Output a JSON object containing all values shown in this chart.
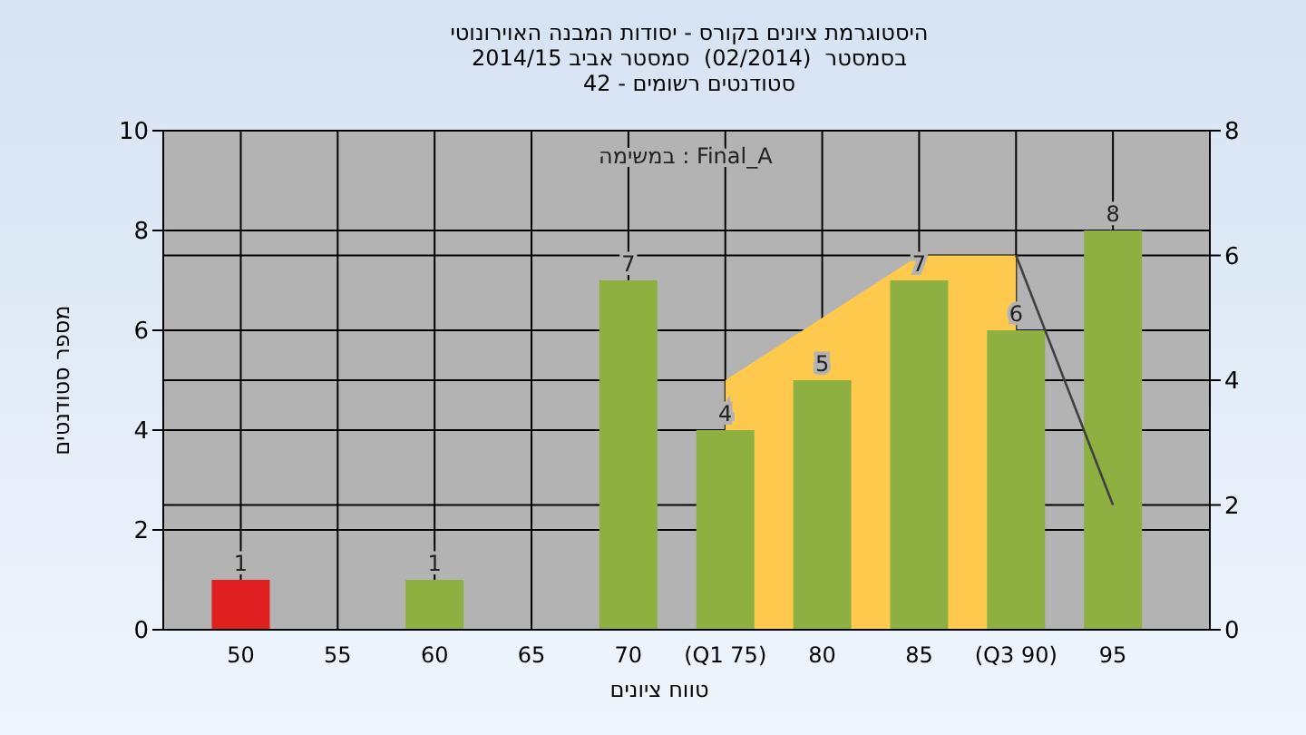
{
  "chart_data": {
    "type": "bar",
    "title": "היסטוגרמת ציונים בקורס - יסודות המבנה האוירונוטי",
    "subtitle": "בסמסטר  (02/2014)  סמסטר אביב 2014/15\nסטודנטים רשומים - 42",
    "xlabel": "טווח ציונים",
    "ylabel": "מספר סטודנטים",
    "annotations": [
      "במשימה : Final_A"
    ],
    "categories": [
      "50",
      "55",
      "60",
      "65",
      "70",
      "(Q1 75)",
      "80",
      "85",
      "(Q3 90)",
      "95"
    ],
    "series": [
      {
        "type": "area",
        "axis": "y2",
        "color": "#ffc94d",
        "values": [
          null,
          null,
          null,
          null,
          null,
          4,
          5,
          6,
          6,
          null
        ]
      },
      {
        "type": "line",
        "axis": "y2",
        "color": "#404040",
        "values": [
          null,
          null,
          null,
          null,
          null,
          null,
          null,
          null,
          6,
          2
        ]
      },
      {
        "value_labels": [
          "1",
          null,
          "1",
          null,
          "7",
          "4",
          "5",
          "7",
          "6",
          "8"
        ],
        "colors": [
          "#e02020",
          "#8db040",
          "#8db040",
          "#8db040",
          "#8db040",
          "#8db040",
          "#8db040",
          "#8db040",
          "#8db040",
          "#8db040"
        ],
        "values": [
          1,
          0,
          1,
          0,
          7,
          4,
          5,
          7,
          6,
          8
        ]
      }
    ],
    "grid": true,
    "ylim": [
      0,
      10
    ],
    "yticks": [
      0,
      2,
      4,
      6,
      8,
      10
    ],
    "y2lim": [
      0,
      8
    ],
    "y2ticks": [
      0,
      2,
      4,
      6,
      8
    ]
  }
}
